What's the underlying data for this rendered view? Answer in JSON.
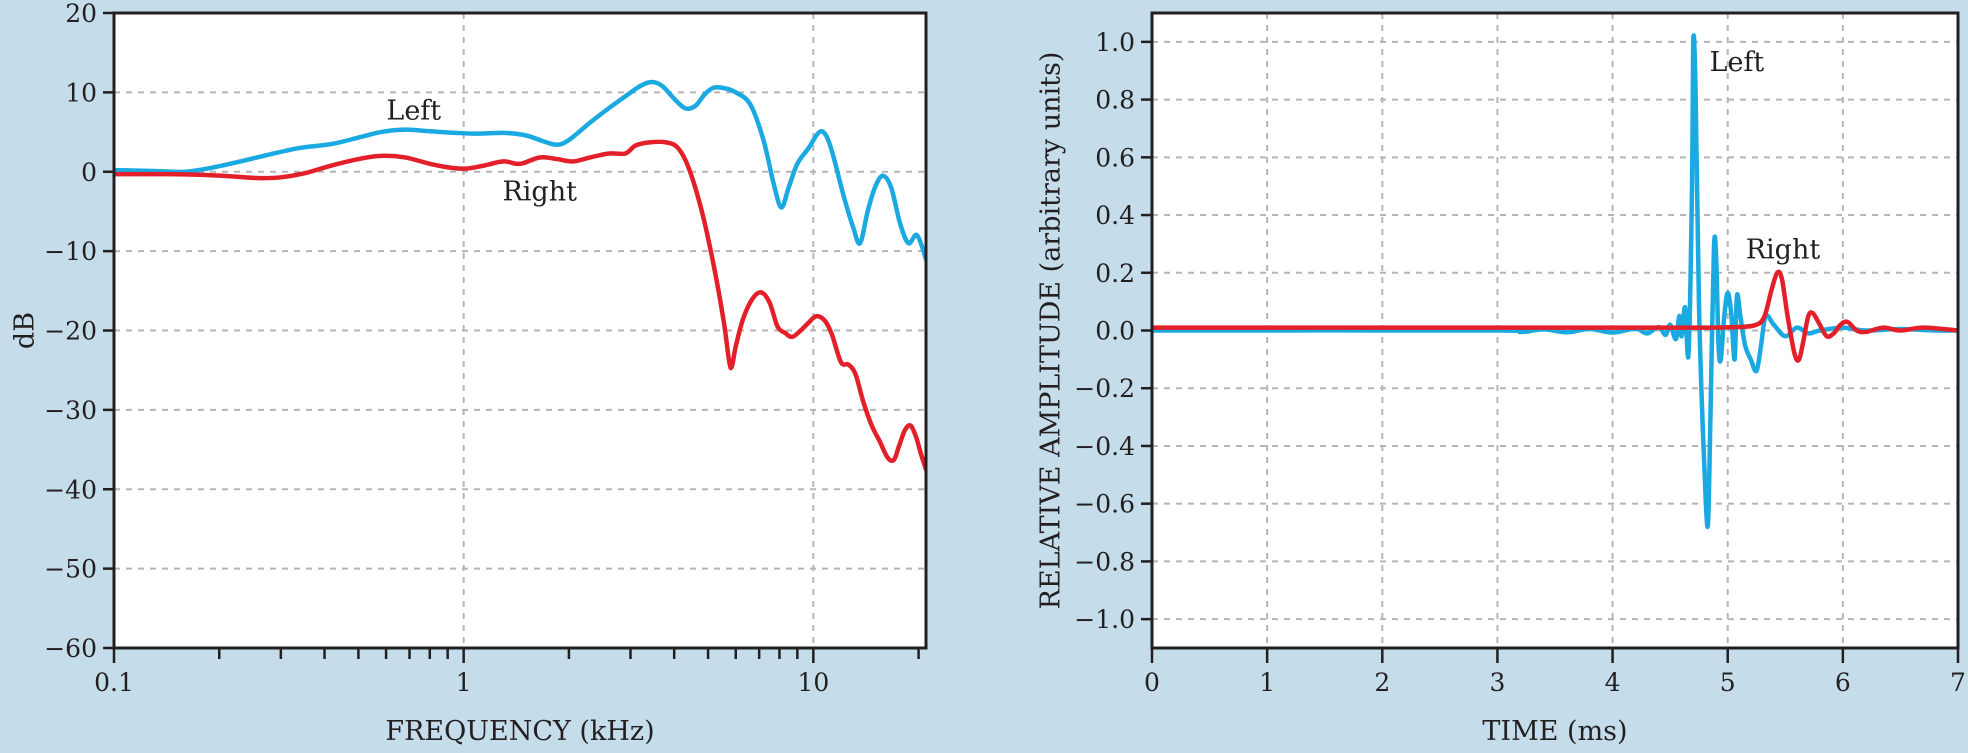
{
  "colors": {
    "background": "#c5dceb",
    "plot_bg": "#ffffff",
    "left_series": "#1aa9e1",
    "right_series": "#e3202a",
    "grid": "#b5b5b5",
    "axis": "#231f20"
  },
  "chart_data": [
    {
      "type": "line",
      "xscale": "log",
      "xlabel": "FREQUENCY (kHz)",
      "ylabel": "dB",
      "xlim": [
        0.1,
        21
      ],
      "ylim": [
        -60,
        20
      ],
      "grid": true,
      "xticks": [
        0.1,
        1,
        10
      ],
      "xtick_labels": [
        "0.1",
        "1",
        "10"
      ],
      "minor_xticks": [
        0.2,
        0.3,
        0.4,
        0.5,
        0.6,
        0.7,
        0.8,
        0.9,
        2,
        3,
        4,
        5,
        6,
        7,
        8,
        9,
        20
      ],
      "yticks": [
        -60,
        -50,
        -40,
        -30,
        -20,
        -10,
        0,
        10,
        20
      ],
      "ytick_labels": [
        "−60",
        "−50",
        "−40",
        "−30",
        "−20",
        "−10",
        "0",
        "10",
        "20"
      ],
      "series": [
        {
          "name": "Left",
          "points": [
            [
              0.1,
              0.2
            ],
            [
              0.13,
              0.1
            ],
            [
              0.16,
              0.0
            ],
            [
              0.19,
              0.5
            ],
            [
              0.23,
              1.3
            ],
            [
              0.28,
              2.2
            ],
            [
              0.34,
              3.0
            ],
            [
              0.42,
              3.5
            ],
            [
              0.5,
              4.3
            ],
            [
              0.58,
              5.0
            ],
            [
              0.68,
              5.3
            ],
            [
              0.8,
              5.1
            ],
            [
              0.95,
              4.9
            ],
            [
              1.1,
              4.8
            ],
            [
              1.3,
              4.9
            ],
            [
              1.5,
              4.6
            ],
            [
              1.7,
              3.8
            ],
            [
              1.85,
              3.4
            ],
            [
              2.0,
              4.0
            ],
            [
              2.3,
              6.2
            ],
            [
              2.6,
              8.0
            ],
            [
              2.9,
              9.5
            ],
            [
              3.2,
              10.8
            ],
            [
              3.45,
              11.3
            ],
            [
              3.7,
              10.8
            ],
            [
              4.0,
              9.2
            ],
            [
              4.3,
              8.0
            ],
            [
              4.6,
              8.3
            ],
            [
              4.9,
              9.8
            ],
            [
              5.2,
              10.6
            ],
            [
              5.6,
              10.5
            ],
            [
              6.0,
              10.0
            ],
            [
              6.6,
              8.5
            ],
            [
              7.2,
              4.0
            ],
            [
              7.7,
              -1.5
            ],
            [
              8.1,
              -4.5
            ],
            [
              8.5,
              -2.0
            ],
            [
              9.0,
              1.0
            ],
            [
              9.7,
              3.0
            ],
            [
              10.4,
              5.0
            ],
            [
              10.9,
              4.5
            ],
            [
              11.4,
              2.0
            ],
            [
              12.2,
              -3.0
            ],
            [
              13.0,
              -7.0
            ],
            [
              13.6,
              -9.0
            ],
            [
              14.3,
              -5.0
            ],
            [
              15.0,
              -2.0
            ],
            [
              15.8,
              -0.5
            ],
            [
              16.7,
              -2.0
            ],
            [
              17.7,
              -6.5
            ],
            [
              18.7,
              -9.0
            ],
            [
              19.8,
              -8.0
            ],
            [
              21.0,
              -11.0
            ]
          ]
        },
        {
          "name": "Right",
          "points": [
            [
              0.1,
              -0.3
            ],
            [
              0.14,
              -0.3
            ],
            [
              0.18,
              -0.4
            ],
            [
              0.22,
              -0.6
            ],
            [
              0.26,
              -0.8
            ],
            [
              0.3,
              -0.7
            ],
            [
              0.35,
              -0.2
            ],
            [
              0.42,
              0.8
            ],
            [
              0.5,
              1.6
            ],
            [
              0.58,
              2.0
            ],
            [
              0.68,
              1.8
            ],
            [
              0.8,
              1.0
            ],
            [
              0.92,
              0.5
            ],
            [
              1.02,
              0.4
            ],
            [
              1.15,
              0.8
            ],
            [
              1.3,
              1.3
            ],
            [
              1.45,
              1.0
            ],
            [
              1.65,
              1.8
            ],
            [
              1.85,
              1.6
            ],
            [
              2.05,
              1.3
            ],
            [
              2.3,
              1.8
            ],
            [
              2.6,
              2.3
            ],
            [
              2.9,
              2.3
            ],
            [
              3.1,
              3.3
            ],
            [
              3.4,
              3.7
            ],
            [
              3.8,
              3.7
            ],
            [
              4.1,
              3.0
            ],
            [
              4.4,
              0.5
            ],
            [
              4.8,
              -5.0
            ],
            [
              5.2,
              -12.0
            ],
            [
              5.55,
              -19.0
            ],
            [
              5.75,
              -24.0
            ],
            [
              5.85,
              -24.5
            ],
            [
              6.0,
              -22.0
            ],
            [
              6.3,
              -18.5
            ],
            [
              6.7,
              -16.0
            ],
            [
              7.1,
              -15.2
            ],
            [
              7.5,
              -16.5
            ],
            [
              7.9,
              -19.5
            ],
            [
              8.3,
              -20.3
            ],
            [
              8.7,
              -20.8
            ],
            [
              9.2,
              -20.0
            ],
            [
              9.7,
              -19.0
            ],
            [
              10.2,
              -18.2
            ],
            [
              10.8,
              -18.8
            ],
            [
              11.3,
              -20.5
            ],
            [
              12.0,
              -24.0
            ],
            [
              12.6,
              -24.3
            ],
            [
              13.2,
              -25.5
            ],
            [
              13.9,
              -29.0
            ],
            [
              14.7,
              -32.0
            ],
            [
              15.5,
              -34.0
            ],
            [
              16.3,
              -36.0
            ],
            [
              17.0,
              -36.3
            ],
            [
              17.6,
              -34.5
            ],
            [
              18.3,
              -32.5
            ],
            [
              19.0,
              -32.0
            ],
            [
              19.7,
              -33.5
            ],
            [
              20.3,
              -35.5
            ],
            [
              21.0,
              -37.5
            ]
          ]
        }
      ],
      "annotations": [
        {
          "text": "Left",
          "x": 0.72,
          "y": 7.7
        },
        {
          "text": "Right",
          "x": 1.65,
          "y": -2.5
        }
      ]
    },
    {
      "type": "line",
      "xlabel": "TIME (ms)",
      "ylabel": "RELATIVE AMPLITUDE (arbitrary units)",
      "xlim": [
        0,
        7
      ],
      "ylim": [
        -1.1,
        1.1
      ],
      "grid": true,
      "xticks": [
        0,
        1,
        2,
        3,
        4,
        5,
        6,
        7
      ],
      "xtick_labels": [
        "0",
        "1",
        "2",
        "3",
        "4",
        "5",
        "6",
        "7"
      ],
      "yticks": [
        -1.0,
        -0.8,
        -0.6,
        -0.4,
        -0.2,
        0.0,
        0.2,
        0.4,
        0.6,
        0.8,
        1.0
      ],
      "ytick_labels": [
        "−1.0",
        "−0.8",
        "−0.6",
        "−0.4",
        "−0.2",
        "0.0",
        "0.2",
        "0.4",
        "0.6",
        "0.8",
        "1.0"
      ],
      "series": [
        {
          "name": "Left",
          "points": [
            [
              0,
              0.0
            ],
            [
              3.0,
              0.0
            ],
            [
              3.2,
              -0.005
            ],
            [
              3.4,
              0.004
            ],
            [
              3.6,
              -0.006
            ],
            [
              3.8,
              0.005
            ],
            [
              4.0,
              -0.007
            ],
            [
              4.2,
              0.006
            ],
            [
              4.3,
              -0.01
            ],
            [
              4.4,
              0.012
            ],
            [
              4.46,
              -0.015
            ],
            [
              4.5,
              0.02
            ],
            [
              4.55,
              -0.03
            ],
            [
              4.58,
              0.05
            ],
            [
              4.6,
              -0.02
            ],
            [
              4.63,
              0.08
            ],
            [
              4.66,
              -0.08
            ],
            [
              4.69,
              0.5
            ],
            [
              4.7,
              1.0
            ],
            [
              4.72,
              0.85
            ],
            [
              4.75,
              0.1
            ],
            [
              4.78,
              -0.3
            ],
            [
              4.81,
              -0.6
            ],
            [
              4.83,
              -0.66
            ],
            [
              4.85,
              -0.3
            ],
            [
              4.88,
              0.28
            ],
            [
              4.9,
              0.25
            ],
            [
              4.92,
              -0.05
            ],
            [
              4.94,
              -0.1
            ],
            [
              4.97,
              0.05
            ],
            [
              5.0,
              0.13
            ],
            [
              5.03,
              0.06
            ],
            [
              5.06,
              -0.1
            ],
            [
              5.08,
              0.12
            ],
            [
              5.11,
              0.05
            ],
            [
              5.15,
              -0.05
            ],
            [
              5.2,
              -0.1
            ],
            [
              5.25,
              -0.14
            ],
            [
              5.29,
              -0.05
            ],
            [
              5.33,
              0.05
            ],
            [
              5.4,
              0.02
            ],
            [
              5.5,
              -0.02
            ],
            [
              5.6,
              0.01
            ],
            [
              5.7,
              -0.01
            ],
            [
              5.8,
              0.0
            ],
            [
              6.0,
              0.01
            ],
            [
              6.2,
              0.0
            ],
            [
              6.5,
              0.005
            ],
            [
              6.8,
              0.0
            ],
            [
              7.0,
              0.0
            ]
          ]
        },
        {
          "name": "Right",
          "points": [
            [
              0,
              0.01
            ],
            [
              2.0,
              0.01
            ],
            [
              4.0,
              0.01
            ],
            [
              4.8,
              0.01
            ],
            [
              5.1,
              0.012
            ],
            [
              5.25,
              0.02
            ],
            [
              5.32,
              0.05
            ],
            [
              5.38,
              0.14
            ],
            [
              5.43,
              0.2
            ],
            [
              5.47,
              0.18
            ],
            [
              5.52,
              0.05
            ],
            [
              5.58,
              -0.08
            ],
            [
              5.62,
              -0.1
            ],
            [
              5.66,
              -0.03
            ],
            [
              5.7,
              0.05
            ],
            [
              5.74,
              0.06
            ],
            [
              5.8,
              0.02
            ],
            [
              5.86,
              -0.02
            ],
            [
              5.92,
              -0.01
            ],
            [
              5.98,
              0.02
            ],
            [
              6.04,
              0.03
            ],
            [
              6.12,
              0.0
            ],
            [
              6.2,
              -0.005
            ],
            [
              6.35,
              0.01
            ],
            [
              6.5,
              0.0
            ],
            [
              6.7,
              0.01
            ],
            [
              7.0,
              0.0
            ]
          ]
        }
      ],
      "annotations": [
        {
          "text": "Left",
          "x": 5.08,
          "y": 0.93
        },
        {
          "text": "Right",
          "x": 5.48,
          "y": 0.28
        }
      ]
    }
  ]
}
